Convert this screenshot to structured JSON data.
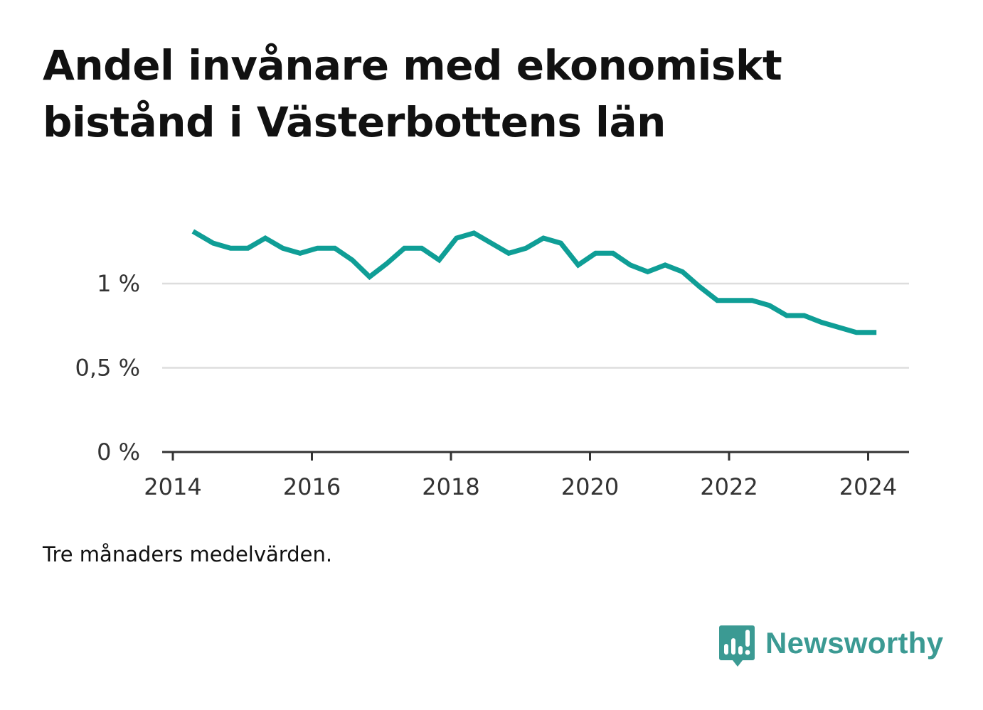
{
  "title": "Andel invånare med ekonomiskt bistånd i Västerbottens län",
  "note": "Tre månaders medelvärden.",
  "brand": {
    "name": "Newsworthy",
    "color": "#3b9a93",
    "icon": "newsworthy-logo-icon"
  },
  "chart_data": {
    "type": "line",
    "title": "Andel invånare med ekonomiskt bistånd i Västerbottens län",
    "xlabel": "",
    "ylabel": "",
    "x_ticks": [
      "2014",
      "2016",
      "2018",
      "2020",
      "2022",
      "2024"
    ],
    "y_ticks": [
      "0 %",
      "0,5 %",
      "1 %"
    ],
    "xlim": [
      2014,
      2024.4
    ],
    "ylim": [
      0,
      1.5
    ],
    "grid": true,
    "legend": "none",
    "series": [
      {
        "color": "#0f9e96",
        "x": [
          2014.29,
          2014.58,
          2014.83,
          2015.08,
          2015.33,
          2015.58,
          2015.83,
          2016.08,
          2016.33,
          2016.58,
          2016.83,
          2017.08,
          2017.33,
          2017.58,
          2017.83,
          2018.08,
          2018.33,
          2018.58,
          2018.83,
          2019.08,
          2019.33,
          2019.58,
          2019.83,
          2020.08,
          2020.33,
          2020.58,
          2020.83,
          2021.08,
          2021.33,
          2021.58,
          2021.83,
          2022.08,
          2022.33,
          2022.58,
          2022.83,
          2023.08,
          2023.33,
          2023.58,
          2023.83,
          2024.12
        ],
        "values": [
          1.31,
          1.24,
          1.21,
          1.21,
          1.27,
          1.21,
          1.18,
          1.21,
          1.21,
          1.14,
          1.04,
          1.12,
          1.21,
          1.21,
          1.14,
          1.27,
          1.3,
          1.24,
          1.18,
          1.21,
          1.27,
          1.24,
          1.11,
          1.18,
          1.18,
          1.11,
          1.07,
          1.11,
          1.07,
          0.98,
          0.9,
          0.9,
          0.9,
          0.87,
          0.81,
          0.81,
          0.77,
          0.74,
          0.71,
          0.71
        ]
      }
    ]
  }
}
